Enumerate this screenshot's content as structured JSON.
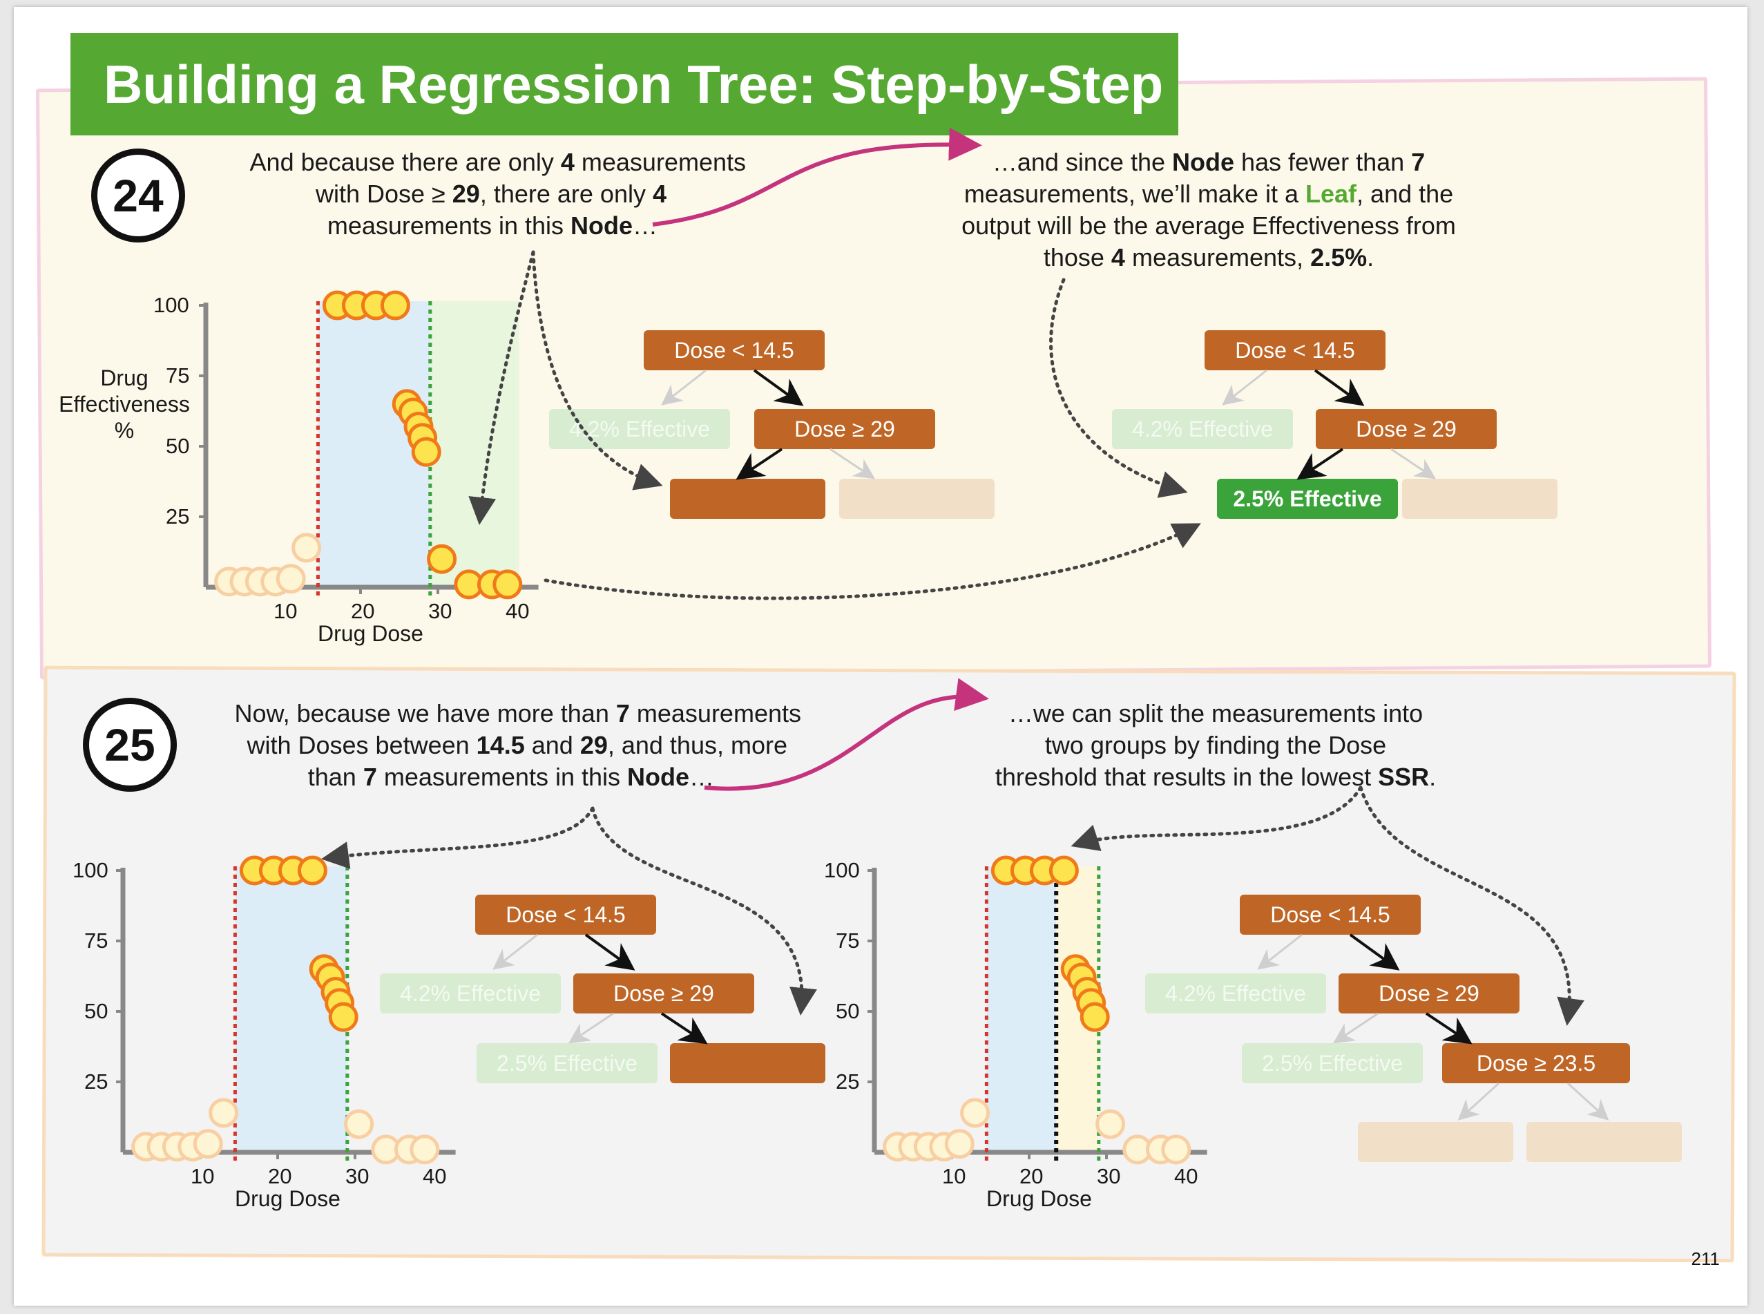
{
  "title": "Building a Regression Tree: Step-by-Step",
  "page_number": "211",
  "step24": {
    "number": "24",
    "left_text": [
      [
        "And because there are only ",
        "4",
        " measurements"
      ],
      [
        "with Dose ≥ ",
        "29",
        ", there are only ",
        "4"
      ],
      [
        "measurements in this ",
        "Node",
        "…"
      ]
    ],
    "right_text": [
      [
        "…and since the ",
        "Node",
        " has fewer than ",
        "7"
      ],
      [
        "measurements, we’ll make it a ",
        "Leaf",
        ", and the"
      ],
      [
        "output will be the average Effectiveness from"
      ],
      [
        "those ",
        "4",
        " measurements, ",
        "2.5%",
        "."
      ]
    ],
    "ylabel_lines": [
      "Drug",
      "Effectiveness",
      "%"
    ],
    "xlabel": "Drug Dose",
    "y_ticks": [
      "100",
      "75",
      "50",
      "25"
    ],
    "x_ticks": [
      "10",
      "20",
      "30",
      "40"
    ],
    "tree_left": {
      "root": "Dose < 14.5",
      "left_leaf": "4.2% Effective",
      "split": "Dose ≥ 29"
    },
    "tree_right": {
      "root": "Dose < 14.5",
      "left_leaf": "4.2% Effective",
      "split": "Dose ≥ 29",
      "new_leaf": "2.5% Effective"
    }
  },
  "step25": {
    "number": "25",
    "left_text": [
      [
        "Now, because we have more than ",
        "7",
        " measurements"
      ],
      [
        "with Doses between ",
        "14.5",
        " and ",
        "29",
        ", and thus, more"
      ],
      [
        "than ",
        "7",
        " measurements in this ",
        "Node",
        "…"
      ]
    ],
    "right_text": [
      [
        "…we can split the measurements into"
      ],
      [
        "two groups by finding the Dose"
      ],
      [
        "threshold that results in the lowest ",
        "SSR",
        "."
      ]
    ],
    "xlabel": "Drug Dose",
    "y_ticks": [
      "100",
      "75",
      "50",
      "25"
    ],
    "x_ticks": [
      "10",
      "20",
      "30",
      "40"
    ],
    "tree_left": {
      "root": "Dose < 14.5",
      "left_leaf": "4.2% Effective",
      "split": "Dose ≥ 29",
      "leaf2": "2.5% Effective"
    },
    "tree_right": {
      "root": "Dose < 14.5",
      "left_leaf": "4.2% Effective",
      "split": "Dose ≥ 29",
      "leaf2": "2.5% Effective",
      "new_split": "Dose ≥ 23.5"
    }
  },
  "colors": {
    "green_title": "#55a932",
    "node_brown": "#bf6626",
    "leaf_green": "#3aa33a",
    "magenta_arrow": "#c4337c",
    "point_fill": "#fde34e",
    "point_stroke": "#f07a1a",
    "threshold_red": "#d9342b",
    "threshold_green": "#3aa33a",
    "shade_blue": "#dcedf8",
    "shade_green": "#e9f6de",
    "shade_yellow": "#fdf6da"
  }
}
